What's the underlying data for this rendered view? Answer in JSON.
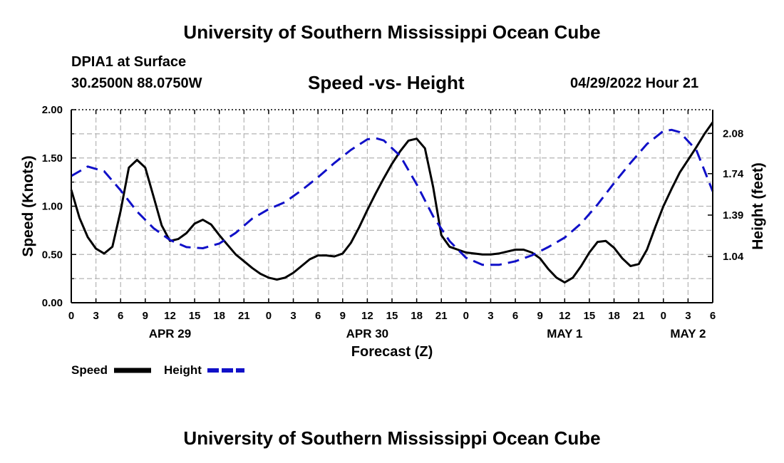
{
  "header": {
    "title": "University of Southern Mississippi Ocean Cube",
    "station": "DPIA1 at Surface",
    "coords": "30.2500N  88.0750W",
    "subtitle": "Speed -vs- Height",
    "datetime": "04/29/2022 Hour 21"
  },
  "footer": {
    "title": "University of Southern Mississippi Ocean Cube"
  },
  "colors": {
    "speed": "#000000",
    "height": "#1010c8",
    "grid": "#b4b4b4"
  },
  "chart_data": {
    "type": "line",
    "title": "Speed -vs- Height",
    "xlabel": "Forecast (Z)",
    "ylabel": "Speed (Knots)",
    "ylabel_right": "Height (feet)",
    "xlim": [
      0,
      78
    ],
    "ylim": [
      0,
      2.0
    ],
    "y2lim": [
      0.65,
      2.28
    ],
    "x_ticks": [
      0,
      3,
      6,
      9,
      12,
      15,
      18,
      21,
      24,
      27,
      30,
      33,
      36,
      39,
      42,
      45,
      48,
      51,
      54,
      57,
      60,
      63,
      66,
      69,
      72,
      75,
      78
    ],
    "x_tick_labels": [
      "0",
      "3",
      "6",
      "9",
      "12",
      "15",
      "18",
      "21",
      "0",
      "3",
      "6",
      "9",
      "12",
      "15",
      "18",
      "21",
      "0",
      "3",
      "6",
      "9",
      "12",
      "15",
      "18",
      "21",
      "0",
      "3",
      "6"
    ],
    "day_labels": [
      {
        "x": 12,
        "label": "APR 29"
      },
      {
        "x": 36,
        "label": "APR 30"
      },
      {
        "x": 60,
        "label": "MAY 1"
      },
      {
        "x": 75,
        "label": "MAY 2"
      }
    ],
    "y_ticks": [
      0,
      0.5,
      1.0,
      1.5,
      2.0
    ],
    "y_tick_labels": [
      "0.00",
      "0.50",
      "1.00",
      "1.50",
      "2.00"
    ],
    "y2_ticks": [
      1.04,
      1.39,
      1.74,
      2.08
    ],
    "y2_tick_labels": [
      "1.04",
      "1.39",
      "1.74",
      "2.08"
    ],
    "grid": true,
    "legend_position": "bottom-left",
    "series": [
      {
        "name": "Speed",
        "axis": "left",
        "style": "solid",
        "x": [
          0,
          1,
          2,
          3,
          4,
          5,
          6,
          7,
          8,
          9,
          10,
          11,
          12,
          13,
          14,
          15,
          16,
          17,
          18,
          19,
          20,
          21,
          22,
          23,
          24,
          25,
          26,
          27,
          28,
          29,
          30,
          31,
          32,
          33,
          34,
          35,
          36,
          37,
          38,
          39,
          40,
          41,
          42,
          43,
          44,
          45,
          46,
          47,
          48,
          49,
          50,
          51,
          52,
          53,
          54,
          55,
          56,
          57,
          58,
          59,
          60,
          61,
          62,
          63,
          64,
          65,
          66,
          67,
          68,
          69,
          70,
          71,
          72,
          73,
          74,
          75,
          76,
          77,
          78
        ],
        "values": [
          1.17,
          0.88,
          0.68,
          0.56,
          0.51,
          0.58,
          0.95,
          1.4,
          1.48,
          1.4,
          1.1,
          0.8,
          0.64,
          0.66,
          0.72,
          0.82,
          0.86,
          0.81,
          0.7,
          0.6,
          0.5,
          0.43,
          0.36,
          0.3,
          0.26,
          0.24,
          0.26,
          0.31,
          0.38,
          0.45,
          0.49,
          0.49,
          0.48,
          0.51,
          0.62,
          0.78,
          0.96,
          1.13,
          1.29,
          1.44,
          1.57,
          1.68,
          1.7,
          1.6,
          1.2,
          0.7,
          0.58,
          0.55,
          0.52,
          0.51,
          0.5,
          0.5,
          0.51,
          0.53,
          0.55,
          0.55,
          0.52,
          0.46,
          0.35,
          0.26,
          0.21,
          0.26,
          0.38,
          0.52,
          0.63,
          0.64,
          0.57,
          0.46,
          0.38,
          0.4,
          0.55,
          0.78,
          1.0,
          1.18,
          1.35,
          1.48,
          1.61,
          1.75,
          1.87
        ]
      },
      {
        "name": "Height",
        "axis": "right",
        "style": "dashed",
        "x": [
          0,
          2,
          4,
          6,
          8,
          10,
          12,
          14,
          16,
          18,
          20,
          22,
          24,
          26,
          28,
          30,
          32,
          34,
          36,
          37,
          38,
          40,
          42,
          44,
          46,
          48,
          50,
          52,
          54,
          56,
          58,
          60,
          62,
          64,
          66,
          68,
          70,
          72,
          73,
          74,
          76,
          78
        ],
        "values": [
          1.72,
          1.8,
          1.76,
          1.6,
          1.42,
          1.28,
          1.18,
          1.12,
          1.11,
          1.15,
          1.24,
          1.36,
          1.44,
          1.5,
          1.6,
          1.71,
          1.83,
          1.94,
          2.03,
          2.04,
          2.02,
          1.89,
          1.65,
          1.38,
          1.17,
          1.03,
          0.97,
          0.97,
          1.0,
          1.05,
          1.12,
          1.2,
          1.32,
          1.48,
          1.66,
          1.83,
          1.99,
          2.1,
          2.11,
          2.09,
          1.94,
          1.59
        ]
      }
    ]
  }
}
